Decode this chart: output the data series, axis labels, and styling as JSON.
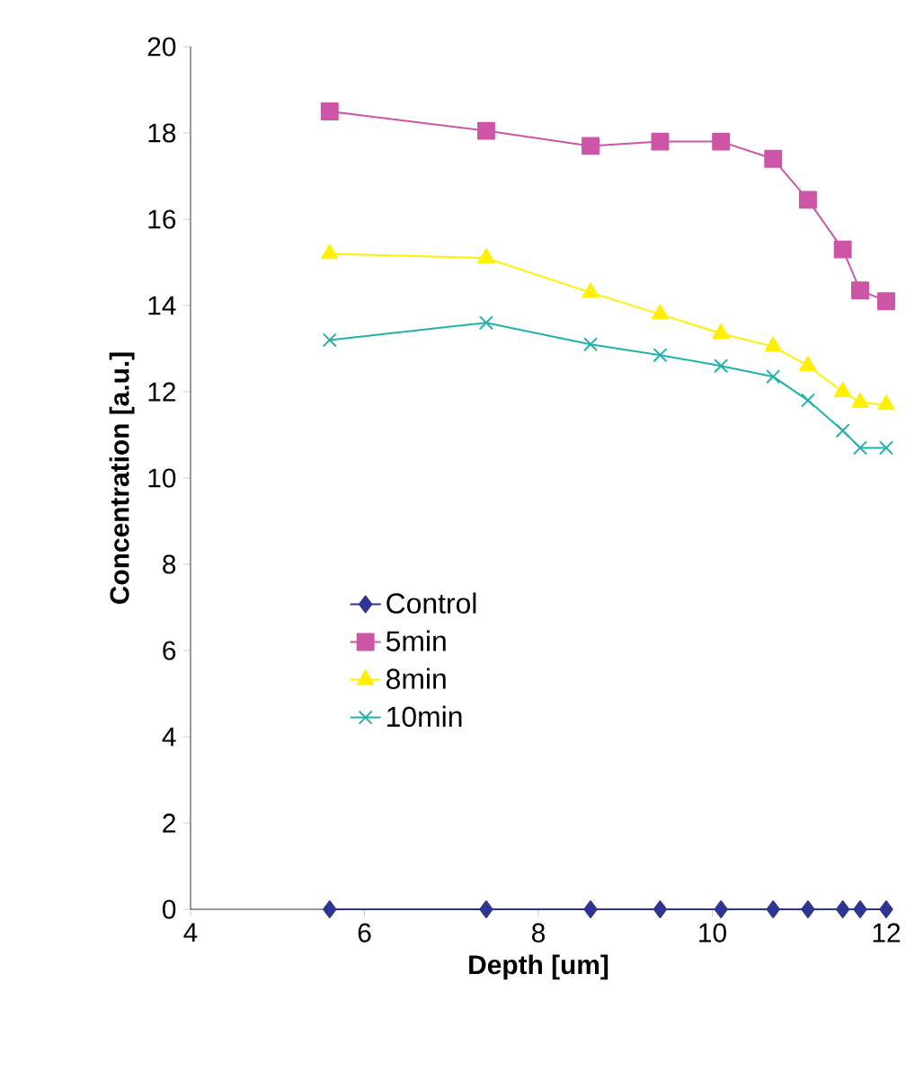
{
  "chart_data": {
    "type": "line",
    "xlabel": "Depth [um]",
    "ylabel": "Concentration [a.u.]",
    "x": [
      5.6,
      7.4,
      8.6,
      9.4,
      10.1,
      10.7,
      11.1,
      11.5,
      11.7,
      12.0
    ],
    "series": [
      {
        "name": "Control",
        "color": "#2e3592",
        "marker": "diamond",
        "values": [
          0,
          0,
          0,
          0,
          0,
          0,
          0,
          0,
          0,
          0
        ]
      },
      {
        "name": "5min",
        "color": "#cc55a5",
        "marker": "square",
        "values": [
          18.5,
          18.05,
          17.7,
          17.8,
          17.8,
          17.4,
          16.45,
          15.3,
          14.35,
          14.1
        ]
      },
      {
        "name": "8min",
        "color": "#ffef00",
        "marker": "triangle",
        "values": [
          15.2,
          15.1,
          14.3,
          13.8,
          13.35,
          13.05,
          12.6,
          12.0,
          11.75,
          11.7
        ]
      },
      {
        "name": "10min",
        "color": "#20b2aa",
        "marker": "cross",
        "values": [
          13.2,
          13.6,
          13.1,
          12.85,
          12.6,
          12.35,
          11.8,
          11.1,
          10.7,
          10.7
        ]
      }
    ],
    "xlim": [
      4,
      12
    ],
    "xticks": [
      4,
      6,
      8,
      10,
      12
    ],
    "ylim": [
      0,
      20
    ],
    "yticks": [
      0,
      2,
      4,
      6,
      8,
      10,
      12,
      14,
      16,
      18,
      20
    ],
    "grid": false,
    "legend": "center",
    "line_style": "solid"
  }
}
